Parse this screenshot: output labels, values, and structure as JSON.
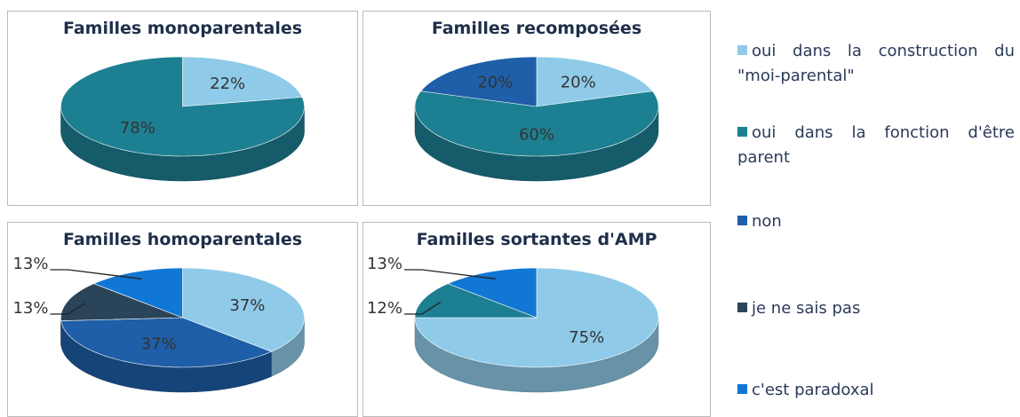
{
  "legend": {
    "categories": [
      "oui dans la construction du \"moi-parental\"",
      "oui dans la fonction d'être parent",
      "non",
      "je ne sais pas",
      "c'est paradoxal"
    ],
    "colors": [
      "#8fcbe9",
      "#1d7f92",
      "#1f5ea8",
      "#2a4459",
      "#1177d4"
    ]
  },
  "chart_data": [
    {
      "type": "pie",
      "title": "Familles monoparentales",
      "values": [
        22,
        78,
        null,
        null,
        null
      ],
      "value_labels": [
        "22%",
        "78%",
        null,
        null,
        null
      ]
    },
    {
      "type": "pie",
      "title": "Familles recomposées",
      "values": [
        20,
        60,
        20,
        null,
        null
      ],
      "value_labels": [
        "20%",
        "60%",
        "20%",
        null,
        null
      ]
    },
    {
      "type": "pie",
      "title": "Familles homoparentales",
      "values": [
        37,
        null,
        37,
        13,
        13
      ],
      "value_labels": [
        "37%",
        null,
        "37%",
        "13%",
        "13%"
      ]
    },
    {
      "type": "pie",
      "title": "Familles sortantes d'AMP",
      "values": [
        75,
        12,
        null,
        null,
        13
      ],
      "value_labels": [
        "75%",
        "12%",
        null,
        null,
        "13%"
      ]
    }
  ]
}
